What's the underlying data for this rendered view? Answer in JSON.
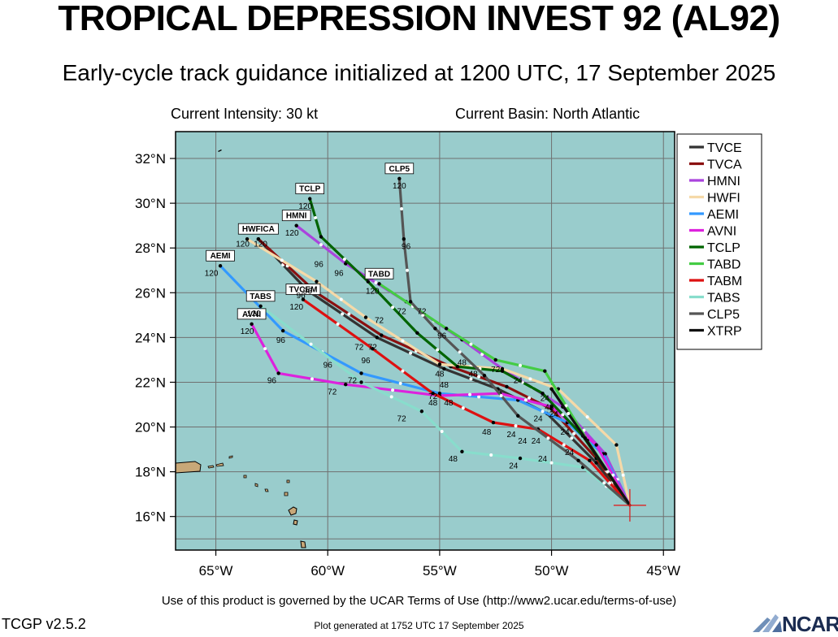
{
  "header": {
    "title": "TROPICAL DEPRESSION INVEST 92 (AL92)",
    "subtitle": "Early-cycle track guidance initialized at 1200 UTC, 17 September 2025",
    "intensity": "Current Intensity: 30 kt",
    "basin": "Current Basin: North Atlantic"
  },
  "footer": {
    "terms": "Use of this product is governed by the UCAR Terms of Use (http://www2.ucar.edu/terms-of-use)",
    "version": "TCGP v2.5.2",
    "generated": "Plot generated at 1752 UTC   17 September 2025",
    "logo": "NCAR"
  },
  "colors": {
    "ocean": "#99cccc",
    "land": "#c8a878",
    "grid": "#707070"
  },
  "chart_data": {
    "type": "line",
    "xlim": [
      -66.8,
      -44.5
    ],
    "ylim": [
      14.5,
      33.2
    ],
    "xticks": [
      -65,
      -60,
      -55,
      -50,
      -45
    ],
    "xtick_labels": [
      "65°W",
      "60°W",
      "55°W",
      "50°W",
      "45°W"
    ],
    "yticks": [
      16,
      18,
      20,
      22,
      24,
      26,
      28,
      30,
      32
    ],
    "ytick_labels": [
      "16°N",
      "18°N",
      "20°N",
      "22°N",
      "24°N",
      "26°N",
      "28°N",
      "30°N",
      "32°N"
    ],
    "grid": true,
    "legend_position": "right",
    "initial_position": [
      -46.5,
      16.5
    ],
    "series": [
      {
        "name": "TVCE",
        "color": "#333333",
        "x": [
          -46.5,
          -48.0,
          -50.2,
          -52.4,
          -54.8,
          -57.8,
          -60.9,
          -63.1
        ],
        "y": [
          16.5,
          18.4,
          20.6,
          21.7,
          22.6,
          24.0,
          26.1,
          28.4
        ]
      },
      {
        "name": "TVCA",
        "color": "#8b1010",
        "x": [
          -46.5,
          -48.0,
          -50.0,
          -52.0,
          -54.5,
          -57.6,
          -60.5,
          -63.1
        ],
        "y": [
          16.5,
          18.6,
          20.8,
          21.8,
          22.7,
          24.1,
          26.0,
          28.4
        ]
      },
      {
        "name": "HMNI",
        "color": "#aa44dd",
        "x": [
          -46.5,
          -47.6,
          -49.5,
          -52.2,
          -54.0,
          -56.5,
          -59.2,
          -61.4
        ],
        "y": [
          16.5,
          18.8,
          20.9,
          22.6,
          23.9,
          25.6,
          27.3,
          29.0
        ]
      },
      {
        "name": "HWFI",
        "color": "#f5d9a8",
        "x": [
          -46.5,
          -47.1,
          -49.7,
          -52.2,
          -55.0,
          -58.3,
          -60.5,
          -63.6
        ],
        "y": [
          16.5,
          19.2,
          21.7,
          22.6,
          22.8,
          24.9,
          26.5,
          28.4
        ]
      },
      {
        "name": "AEMI",
        "color": "#3399ff",
        "x": [
          -46.5,
          -47.7,
          -49.3,
          -51.5,
          -55.0,
          -58.5,
          -62.0,
          -64.8
        ],
        "y": [
          16.5,
          18.8,
          20.2,
          21.2,
          21.5,
          22.4,
          24.3,
          27.2
        ]
      },
      {
        "name": "AVNI",
        "color": "#dd22dd",
        "x": [
          -46.5,
          -48.0,
          -50.0,
          -52.3,
          -55.0,
          -59.2,
          -62.2,
          -63.4
        ],
        "y": [
          16.5,
          19.2,
          20.9,
          21.5,
          21.4,
          21.9,
          22.4,
          24.6
        ]
      },
      {
        "name": "TCLP",
        "color": "#006400",
        "x": [
          -46.5,
          -48.6,
          -50.4,
          -52.2,
          -54.2,
          -56.0,
          -58.2,
          -60.3,
          -60.8
        ],
        "y": [
          16.5,
          19.6,
          21.5,
          22.5,
          22.7,
          24.2,
          26.5,
          28.5,
          30.2
        ]
      },
      {
        "name": "TABD",
        "color": "#44cc44",
        "x": [
          -46.5,
          -48.4,
          -50.3,
          -52.5,
          -54.7,
          -57.7
        ],
        "y": [
          16.5,
          19.4,
          22.5,
          23.0,
          24.4,
          26.4
        ]
      },
      {
        "name": "TABM",
        "color": "#dd1111",
        "x": [
          -46.5,
          -48.3,
          -50.6,
          -52.6,
          -55.3,
          -58.0,
          -61.1
        ],
        "y": [
          16.5,
          18.5,
          19.9,
          20.2,
          21.5,
          23.5,
          25.7
        ]
      },
      {
        "name": "TABS",
        "color": "#88ddcc",
        "x": [
          -46.5,
          -48.6,
          -51.4,
          -54.0,
          -55.8,
          -58.5,
          -63.0
        ],
        "y": [
          16.5,
          18.2,
          18.6,
          18.9,
          20.7,
          22.0,
          25.4
        ]
      },
      {
        "name": "CLP5",
        "color": "#555555",
        "x": [
          -46.5,
          -48.8,
          -51.5,
          -53.0,
          -55.2,
          -56.3,
          -56.6,
          -56.8
        ],
        "y": [
          16.5,
          18.5,
          20.5,
          22.3,
          24.4,
          25.6,
          28.4,
          31.1
        ]
      },
      {
        "name": "XTRP",
        "color": "#111111",
        "x": [
          -46.5,
          -48.5,
          -50.0
        ],
        "y": [
          16.5,
          19.5,
          21.7
        ]
      }
    ],
    "point_labels": [
      {
        "text": "CLP5",
        "x": -56.8,
        "y": 31.1,
        "boxed": true
      },
      {
        "text": "TCLP",
        "x": -60.8,
        "y": 30.2,
        "boxed": true
      },
      {
        "text": "HMNI",
        "x": -61.4,
        "y": 29.0,
        "boxed": true
      },
      {
        "text": "HWFICA",
        "x": -63.1,
        "y": 28.4,
        "boxed": true
      },
      {
        "text": "AEMI",
        "x": -64.8,
        "y": 27.2,
        "boxed": true
      },
      {
        "text": "TABD",
        "x": -57.7,
        "y": 26.4,
        "boxed": true
      },
      {
        "text": "TVCEM",
        "x": -61.1,
        "y": 25.7,
        "boxed": true
      },
      {
        "text": "TABS",
        "x": -63.0,
        "y": 25.4,
        "boxed": true
      },
      {
        "text": "AVNI",
        "x": -63.4,
        "y": 24.6,
        "boxed": true
      },
      {
        "text": "120",
        "x": -56.8,
        "y": 30.8
      },
      {
        "text": "120",
        "x": -61.0,
        "y": 29.9
      },
      {
        "text": "120",
        "x": -61.6,
        "y": 28.7
      },
      {
        "text": "120",
        "x": -63.8,
        "y": 28.2
      },
      {
        "text": "120",
        "x": -63.0,
        "y": 28.2
      },
      {
        "text": "120",
        "x": -65.2,
        "y": 26.9
      },
      {
        "text": "120",
        "x": -58.0,
        "y": 26.1
      },
      {
        "text": "120",
        "x": -61.4,
        "y": 25.4
      },
      {
        "text": "120",
        "x": -63.3,
        "y": 25.1
      },
      {
        "text": "120",
        "x": -63.6,
        "y": 24.3
      },
      {
        "text": "96",
        "x": -56.5,
        "y": 28.1
      },
      {
        "text": "96",
        "x": -60.4,
        "y": 27.3
      },
      {
        "text": "96",
        "x": -59.5,
        "y": 26.9
      },
      {
        "text": "96",
        "x": -61.2,
        "y": 25.9
      },
      {
        "text": "96",
        "x": -60.9,
        "y": 26.1
      },
      {
        "text": "96",
        "x": -54.9,
        "y": 24.1
      },
      {
        "text": "96",
        "x": -62.1,
        "y": 23.9
      },
      {
        "text": "96",
        "x": -60.0,
        "y": 22.8
      },
      {
        "text": "96",
        "x": -58.3,
        "y": 23.0
      },
      {
        "text": "96",
        "x": -62.5,
        "y": 22.1
      },
      {
        "text": "72",
        "x": -57.7,
        "y": 24.8
      },
      {
        "text": "72",
        "x": -56.7,
        "y": 25.2
      },
      {
        "text": "72",
        "x": -55.8,
        "y": 25.2
      },
      {
        "text": "72",
        "x": -58.6,
        "y": 23.6
      },
      {
        "text": "72",
        "x": -58.0,
        "y": 23.6
      },
      {
        "text": "72",
        "x": -52.5,
        "y": 22.6
      },
      {
        "text": "72",
        "x": -58.9,
        "y": 22.1
      },
      {
        "text": "72",
        "x": -59.8,
        "y": 21.6
      },
      {
        "text": "72",
        "x": -55.3,
        "y": 21.4
      },
      {
        "text": "72",
        "x": -56.7,
        "y": 20.4
      },
      {
        "text": "48",
        "x": -54.0,
        "y": 22.9
      },
      {
        "text": "48",
        "x": -55.0,
        "y": 22.4
      },
      {
        "text": "48",
        "x": -53.5,
        "y": 22.4
      },
      {
        "text": "48",
        "x": -54.8,
        "y": 21.9
      },
      {
        "text": "48",
        "x": -55.3,
        "y": 21.1
      },
      {
        "text": "48",
        "x": -54.6,
        "y": 21.1
      },
      {
        "text": "48",
        "x": -50.1,
        "y": 20.9
      },
      {
        "text": "48",
        "x": -52.9,
        "y": 19.8
      },
      {
        "text": "48",
        "x": -54.4,
        "y": 18.6
      },
      {
        "text": "24",
        "x": -51.5,
        "y": 22.1
      },
      {
        "text": "24",
        "x": -50.3,
        "y": 21.3
      },
      {
        "text": "24",
        "x": -49.9,
        "y": 20.6
      },
      {
        "text": "24",
        "x": -50.6,
        "y": 20.4
      },
      {
        "text": "24",
        "x": -51.8,
        "y": 19.7
      },
      {
        "text": "24",
        "x": -49.4,
        "y": 19.8
      },
      {
        "text": "24",
        "x": -51.3,
        "y": 19.4
      },
      {
        "text": "24",
        "x": -50.7,
        "y": 19.4
      },
      {
        "text": "24",
        "x": -49.2,
        "y": 18.9
      },
      {
        "text": "24",
        "x": -50.4,
        "y": 18.6
      },
      {
        "text": "24",
        "x": -51.7,
        "y": 18.3
      }
    ]
  }
}
